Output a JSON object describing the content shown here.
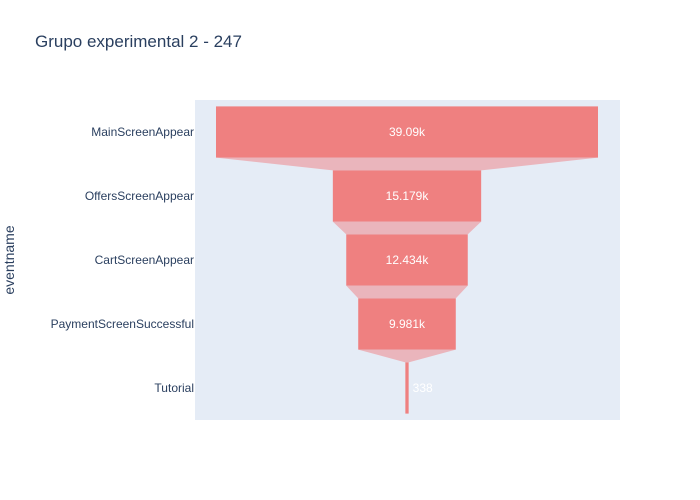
{
  "chart_data": {
    "type": "funnel",
    "title": "Grupo experimental 2 - 247",
    "ylabel": "eventname",
    "categories": [
      "MainScreenAppear",
      "OffersScreenAppear",
      "CartScreenAppear",
      "PaymentScreenSuccessful",
      "Tutorial"
    ],
    "values": [
      39090,
      15179,
      12434,
      9981,
      338
    ],
    "value_labels": [
      "39.09k",
      "15.179k",
      "12.434k",
      "9.981k",
      "338"
    ],
    "colors": {
      "plot_bg": "#e5ecf6",
      "bar": "#ef8080",
      "connector": "#eab5bc",
      "text": "#2a3f5f"
    },
    "grid": false,
    "legend": "none"
  }
}
